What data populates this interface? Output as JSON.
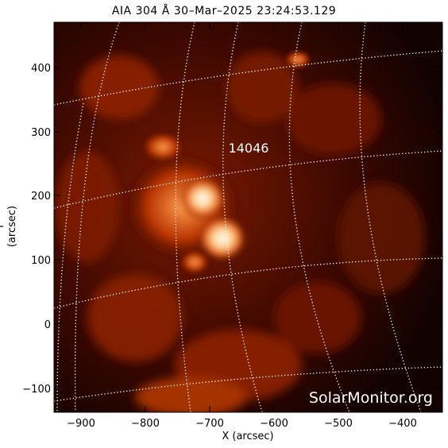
{
  "title": "AIA 304 Å 30–Mar–2025 23:24:53.129",
  "axes": {
    "xlabel": "X (arcsec)",
    "ylabel": "Y (arcsec)",
    "x_ticks": [
      "−900",
      "−800",
      "−700",
      "−600",
      "−500",
      "−400"
    ],
    "y_ticks": [
      "400",
      "300",
      "200",
      "100",
      "0",
      "−100"
    ]
  },
  "image": {
    "region_label": "14046",
    "watermark": "SolarMonitor.org",
    "colors": {
      "background": "#000000",
      "plasma_dark": "#5a0d00",
      "plasma_mid": "#d2460a",
      "plasma_bright": "#ffd8a0",
      "grid": "#ffffff"
    }
  }
}
